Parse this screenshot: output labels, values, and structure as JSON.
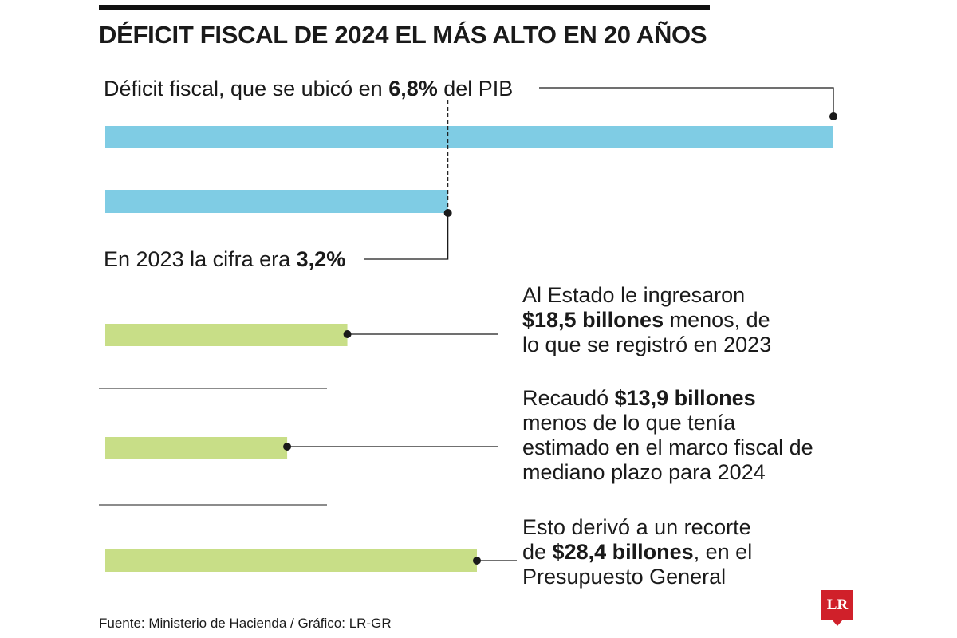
{
  "title": "DÉFICIT FISCAL DE 2024 EL MÁS ALTO EN 20 AÑOS",
  "source": "Fuente: Ministerio de Hacienda / Gráfico: LR-GR",
  "logo": "LR",
  "colors": {
    "blue": "#7fcce4",
    "green": "#c8de87",
    "text": "#1a1a1a",
    "brand": "#d0202a"
  },
  "notes": {
    "deficit_2024": {
      "pre": "Déficit fiscal, que se ubicó en ",
      "bold": "6,8%",
      "post": " del PIB"
    },
    "deficit_2023": {
      "pre": "En 2023 la cifra era ",
      "bold": "3,2%",
      "post": ""
    },
    "ingresos": {
      "line1": "Al Estado le ingresaron",
      "line2_bold": "$18,5 billones",
      "line2_post": " menos, de",
      "line3": "lo que se registró en 2023"
    },
    "recaudo": {
      "line1_pre": "Recaudó ",
      "line1_bold": "$13,9 billones",
      "line2": "menos de lo que tenía",
      "line3": "estimado en el marco fiscal de",
      "line4": "mediano plazo para 2024"
    },
    "recorte": {
      "line1": "Esto derivó a un recorte",
      "line2_pre": "de ",
      "line2_bold": "$28,4 billones",
      "line2_post": ", en el",
      "line3": "Presupuesto General"
    }
  },
  "chart_data": [
    {
      "type": "bar",
      "orientation": "horizontal",
      "categories": [
        "2024",
        "2023"
      ],
      "values": [
        6.8,
        3.2
      ],
      "unit": "% del PIB",
      "color": "#7fcce4"
    },
    {
      "type": "bar",
      "orientation": "horizontal",
      "categories": [
        "Ingresos menos que en 2023",
        "Recaudo menos de lo estimado",
        "Recorte en el Presupuesto General"
      ],
      "values": [
        18.5,
        13.9,
        28.4
      ],
      "unit": "billones",
      "color": "#c8de87"
    }
  ]
}
